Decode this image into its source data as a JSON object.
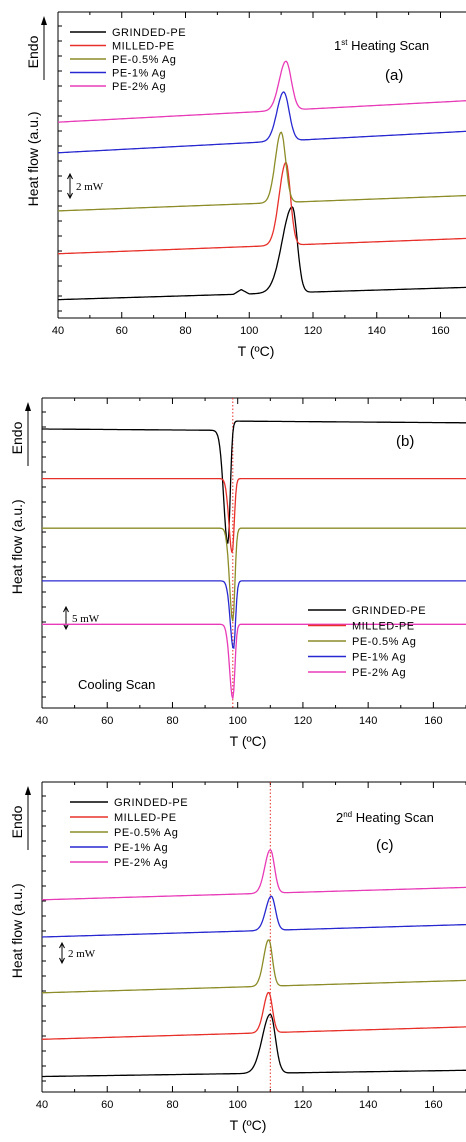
{
  "chart_data": [
    {
      "type": "line",
      "title": "1st Heating Scan",
      "title_main": "1",
      "title_sup": "st",
      "title_rest": " Heating Scan",
      "panel_letter": "(a)",
      "xlabel": "T (ºC)",
      "ylabel": "Heat flow (a.u.)",
      "endo_label": "Endo",
      "scale_bar_label": "2 mW",
      "scale_bar_mw": 2,
      "xlim": [
        40,
        168
      ],
      "xticks": [
        40,
        60,
        80,
        100,
        120,
        140,
        160
      ],
      "y_ticks_shown": true,
      "y_tick_values_printed": false,
      "grid": false,
      "legend_position": "top-left",
      "label_position": "top-right",
      "vertical_ref_line": null,
      "series": [
        {
          "name": "GRINDED-PE",
          "color": "#000000",
          "baseline_ratio": 0.94,
          "slope_ratio": 0.04,
          "peaks": [
            {
              "x": 113.5,
              "amp": 0.28,
              "w_left": 4.5,
              "w_right": 2.2
            }
          ],
          "step": {
            "x": 99,
            "amp": 0.03
          }
        },
        {
          "name": "MILLED-PE",
          "color": "#e8302a",
          "baseline_ratio": 0.79,
          "slope_ratio": 0.05,
          "peaks": [
            {
              "x": 111.5,
              "amp": 0.27,
              "w_left": 3.0,
              "w_right": 2.0
            }
          ]
        },
        {
          "name": "PE-0.5% Ag",
          "color": "#8c8c28",
          "baseline_ratio": 0.65,
          "slope_ratio": 0.05,
          "peaks": [
            {
              "x": 110.0,
              "amp": 0.23,
              "w_left": 2.6,
              "w_right": 2.0
            }
          ]
        },
        {
          "name": "PE-1% Ag",
          "color": "#2828d0",
          "baseline_ratio": 0.46,
          "slope_ratio": 0.07,
          "peaks": [
            {
              "x": 110.8,
              "amp": 0.16,
              "w_left": 3.0,
              "w_right": 2.4
            }
          ]
        },
        {
          "name": "PE-2% Ag",
          "color": "#e83bb8",
          "baseline_ratio": 0.36,
          "slope_ratio": 0.07,
          "peaks": [
            {
              "x": 111.5,
              "amp": 0.16,
              "w_left": 3.0,
              "w_right": 2.4
            }
          ]
        }
      ]
    },
    {
      "type": "line",
      "title": "Cooling Scan",
      "title_main": "Cooling Scan",
      "title_sup": "",
      "title_rest": "",
      "panel_letter": "(b)",
      "xlabel": "T (ºC)",
      "ylabel": "Heat flow (a.u.)",
      "endo_label": "Endo",
      "scale_bar_label": "5 mW",
      "scale_bar_mw": 5,
      "xlim": [
        40,
        170
      ],
      "xticks": [
        40,
        60,
        80,
        100,
        120,
        140,
        160
      ],
      "y_ticks_shown": true,
      "y_tick_values_printed": false,
      "grid": false,
      "legend_position": "bottom-right",
      "label_position": "bottom-left",
      "vertical_ref_line": 98.5,
      "series": [
        {
          "name": "GRINDED-PE",
          "color": "#000000",
          "baseline_ratio": 0.1,
          "slope_ratio": -0.01,
          "peaks": [
            {
              "x": 97.0,
              "amp": -0.37,
              "w_left": 1.8,
              "w_right": 1.0
            }
          ],
          "shift_after": -0.03
        },
        {
          "name": "MILLED-PE",
          "color": "#e8302a",
          "baseline_ratio": 0.26,
          "slope_ratio": 0.0,
          "peaks": [
            {
              "x": 98.3,
              "amp": -0.24,
              "w_left": 1.4,
              "w_right": 0.9
            }
          ]
        },
        {
          "name": "PE-0.5% Ag",
          "color": "#8c8c28",
          "baseline_ratio": 0.42,
          "slope_ratio": 0.0,
          "peaks": [
            {
              "x": 98.5,
              "amp": -0.3,
              "w_left": 1.4,
              "w_right": 0.9
            }
          ]
        },
        {
          "name": "PE-1% Ag",
          "color": "#2828d0",
          "baseline_ratio": 0.59,
          "slope_ratio": 0.0,
          "peaks": [
            {
              "x": 98.7,
              "amp": -0.22,
              "w_left": 1.4,
              "w_right": 0.9
            }
          ]
        },
        {
          "name": "PE-2% Ag",
          "color": "#e83bb8",
          "baseline_ratio": 0.73,
          "slope_ratio": 0.0,
          "peaks": [
            {
              "x": 98.5,
              "amp": -0.24,
              "w_left": 1.4,
              "w_right": 0.9
            }
          ]
        }
      ]
    },
    {
      "type": "line",
      "title": "2nd Heating Scan",
      "title_main": "2",
      "title_sup": "nd",
      "title_rest": " Heating Scan",
      "panel_letter": "(c)",
      "xlabel": "T (ºC)",
      "ylabel": "Heat flow (a.u.)",
      "endo_label": "Endo",
      "scale_bar_label": "2 mW",
      "scale_bar_mw": 2,
      "xlim": [
        40,
        170
      ],
      "xticks": [
        40,
        60,
        80,
        100,
        120,
        140,
        160
      ],
      "y_ticks_shown": true,
      "y_tick_values_printed": false,
      "grid": false,
      "legend_position": "top-left",
      "label_position": "top-right",
      "vertical_ref_line": 110.0,
      "series": [
        {
          "name": "GRINDED-PE",
          "color": "#000000",
          "baseline_ratio": 0.95,
          "slope_ratio": 0.02,
          "peaks": [
            {
              "x": 110.0,
              "amp": 0.19,
              "w_left": 3.5,
              "w_right": 2.2
            }
          ]
        },
        {
          "name": "MILLED-PE",
          "color": "#e8302a",
          "baseline_ratio": 0.83,
          "slope_ratio": 0.04,
          "peaks": [
            {
              "x": 109.5,
              "amp": 0.13,
              "w_left": 2.2,
              "w_right": 1.6
            }
          ]
        },
        {
          "name": "PE-0.5% Ag",
          "color": "#8c8c28",
          "baseline_ratio": 0.68,
          "slope_ratio": 0.04,
          "peaks": [
            {
              "x": 109.5,
              "amp": 0.15,
              "w_left": 2.2,
              "w_right": 1.6
            }
          ]
        },
        {
          "name": "PE-1% Ag",
          "color": "#2828d0",
          "baseline_ratio": 0.5,
          "slope_ratio": 0.04,
          "peaks": [
            {
              "x": 110.3,
              "amp": 0.11,
              "w_left": 2.4,
              "w_right": 1.8
            }
          ]
        },
        {
          "name": "PE-2% Ag",
          "color": "#e83bb8",
          "baseline_ratio": 0.38,
          "slope_ratio": 0.04,
          "peaks": [
            {
              "x": 110.0,
              "amp": 0.14,
              "w_left": 2.4,
              "w_right": 1.8
            }
          ]
        }
      ]
    }
  ]
}
